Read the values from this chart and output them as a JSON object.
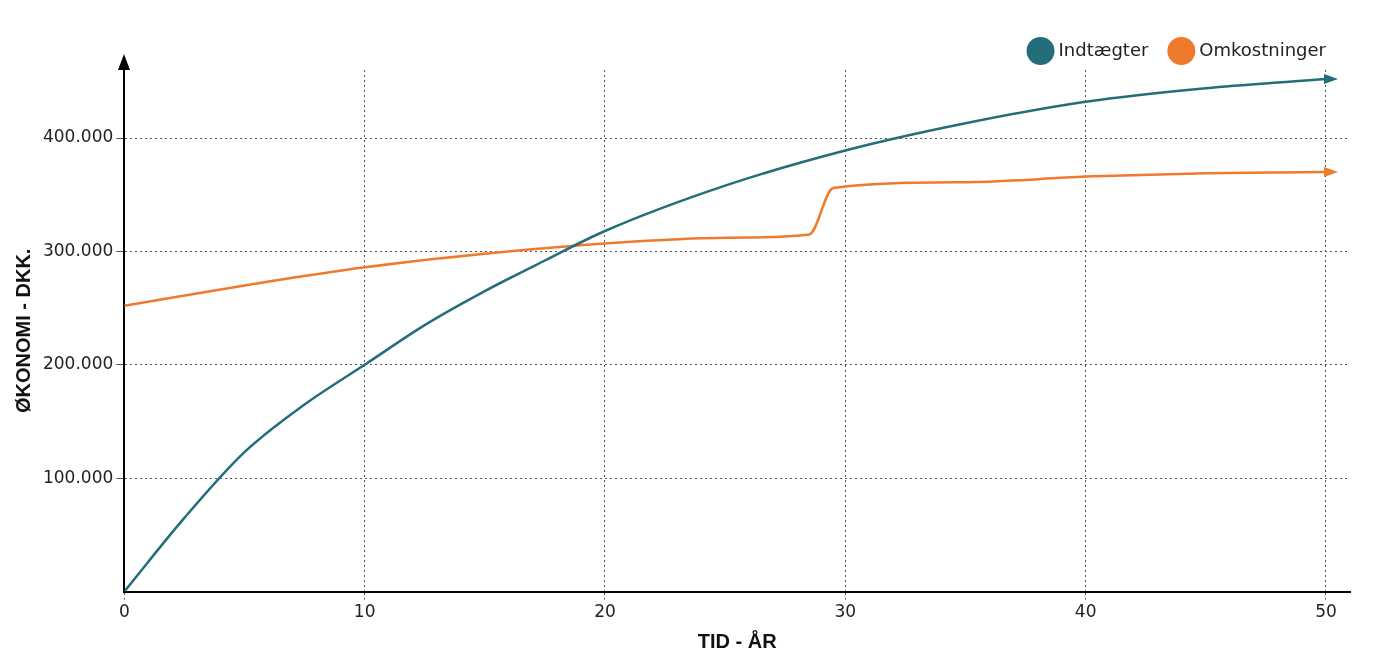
{
  "chart_data": {
    "type": "line",
    "xlabel": "TID - ÅR",
    "ylabel": "ØKONOMI - DKK.",
    "xlim": [
      0,
      51
    ],
    "xticks": [
      0,
      10,
      20,
      30,
      40,
      50
    ],
    "ylim": [
      0,
      460000
    ],
    "yticks": [
      {
        "value": 100000,
        "label": "100.000"
      },
      {
        "value": 200000,
        "label": "200.000"
      },
      {
        "value": 300000,
        "label": "300.000"
      },
      {
        "value": 400000,
        "label": "400.000"
      }
    ],
    "grid": true,
    "legend": "top right",
    "marker": "none",
    "line_style": "solid",
    "series": [
      {
        "name": "Indtægter",
        "color": "#236e78",
        "x": [
          0,
          2.5,
          5,
          7.5,
          10,
          12.5,
          15,
          17.5,
          20,
          25,
          30,
          35,
          40,
          45,
          50
        ],
        "values": [
          0,
          65000,
          123000,
          165000,
          200000,
          235000,
          265000,
          292000,
          318000,
          358000,
          389000,
          413000,
          432000,
          444000,
          452000
        ]
      },
      {
        "name": "Omkostninger",
        "color": "#ee7a2b",
        "x": [
          0,
          5,
          10,
          15,
          20,
          25,
          28.5,
          29.5,
          35,
          40,
          45,
          50
        ],
        "values": [
          252000,
          270000,
          286000,
          298000,
          307000,
          312000,
          315000,
          356000,
          361000,
          366000,
          369000,
          370000
        ]
      }
    ]
  }
}
